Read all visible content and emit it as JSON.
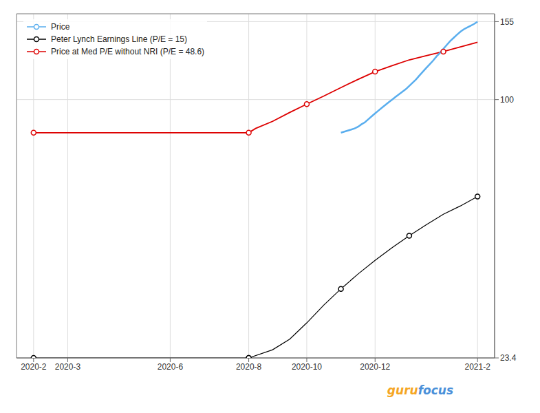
{
  "chart_data": {
    "type": "line",
    "log": "y",
    "grid": true,
    "legend": "upper left",
    "xlim": [
      -0.5,
      13.5
    ],
    "xticks": [
      {
        "value": 0,
        "label": "2020-2"
      },
      {
        "value": 1,
        "label": "2020-3"
      },
      {
        "value": 4,
        "label": "2020-6"
      },
      {
        "value": 6.3,
        "label": "2020-8"
      },
      {
        "value": 8,
        "label": "2020-10"
      },
      {
        "value": 10,
        "label": "2020-12"
      },
      {
        "value": 13,
        "label": "2021-2"
      }
    ],
    "ylim": [
      23.4,
      162
    ],
    "yticks": [
      23.4,
      100,
      155
    ],
    "series": [
      {
        "name": "Price",
        "color": "#5aaeee",
        "marker": "circle",
        "x": [
          9.0,
          9.1,
          9.2,
          9.3,
          9.4,
          9.5,
          9.6,
          9.7,
          9.8,
          9.9,
          10.0,
          10.1,
          10.2,
          10.3,
          10.4,
          10.5,
          10.6,
          10.7,
          10.8,
          10.9,
          11.0,
          11.1,
          11.2,
          11.3,
          11.4,
          11.5,
          11.6,
          11.7,
          11.8,
          11.9,
          12.0,
          12.1,
          12.2,
          12.3,
          12.4,
          12.5,
          12.6,
          12.7,
          12.8,
          12.9,
          13.0
        ],
        "values": [
          83.0,
          83.5,
          84.0,
          84.5,
          85.0,
          85.8,
          87.0,
          88.0,
          89.5,
          91.0,
          92.5,
          94.0,
          95.5,
          97.0,
          98.5,
          100.0,
          101.5,
          103.0,
          104.5,
          106.0,
          108.0,
          110.0,
          112.0,
          114.5,
          117.0,
          119.5,
          122.0,
          124.5,
          127.5,
          130.0,
          133.0,
          136.0,
          139.0,
          141.5,
          144.0,
          146.5,
          148.5,
          150.0,
          151.5,
          153.0,
          155.0
        ]
      },
      {
        "name": "Peter Lynch Earnings Line (P/E = 15)",
        "color": "#000000",
        "marker": "circle",
        "x": [
          0,
          6.3,
          6.3,
          7.0,
          7.5,
          8.0,
          8.5,
          9.0,
          9.5,
          10.0,
          10.5,
          11.0,
          11.5,
          12.0,
          12.5,
          13.0
        ],
        "values": [
          23.4,
          23.4,
          23.4,
          24.5,
          26.0,
          28.5,
          31.5,
          34.5,
          37.5,
          40.5,
          43.5,
          46.5,
          49.5,
          52.5,
          55.0,
          58.0
        ],
        "markers": {
          "x": [
            0,
            6.3,
            9.0,
            11.0,
            13.0
          ],
          "values": [
            23.4,
            23.4,
            34.5,
            46.5,
            58.0
          ]
        }
      },
      {
        "name": "Price at Med P/E without NRI (P/E = 48.6)",
        "color": "#dd0000",
        "marker": "circle",
        "x": [
          0,
          1,
          2,
          3,
          4,
          5,
          6,
          6.3,
          6.5,
          7.0,
          7.5,
          8.0,
          8.5,
          9.0,
          9.5,
          10.0,
          10.5,
          11.0,
          11.5,
          12.0,
          12.5,
          13.0
        ],
        "values": [
          83.0,
          83.0,
          83.0,
          83.0,
          83.0,
          83.0,
          83.0,
          83.0,
          85.0,
          88.5,
          93.0,
          97.5,
          102.0,
          107.0,
          112.0,
          117.0,
          121.0,
          125.0,
          128.0,
          131.0,
          134.5,
          138.0
        ],
        "markers": {
          "x": [
            0,
            6.3,
            8.0,
            10.0,
            12.0
          ],
          "values": [
            83.0,
            83.0,
            97.5,
            117.0,
            131.0
          ]
        }
      }
    ],
    "annotations": [
      {
        "text": "guru",
        "color": "#f5a623"
      },
      {
        "text": "focus",
        "color": "#4a90d9"
      }
    ]
  }
}
